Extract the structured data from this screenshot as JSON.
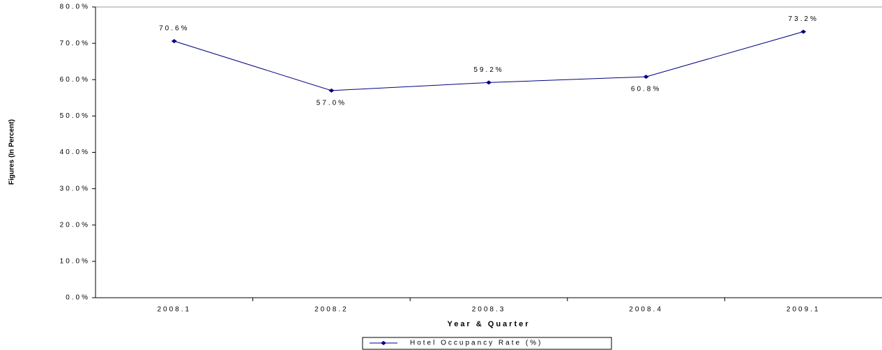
{
  "chart_data": {
    "type": "line",
    "categories": [
      "2008.1",
      "2008.2",
      "2008.3",
      "2008.4",
      "2009.1"
    ],
    "series": [
      {
        "name": "Hotel Occupancy Rate (%)",
        "color": "#000080",
        "values": [
          70.6,
          57.0,
          59.2,
          60.8,
          73.2
        ],
        "value_labels": [
          "70.6%",
          "57.0%",
          "59.2%",
          "60.8%",
          "73.2%"
        ]
      }
    ],
    "ylim": [
      0,
      80
    ],
    "yticks": [
      {
        "value": 0,
        "label": "0.0%"
      },
      {
        "value": 10,
        "label": "10.0%"
      },
      {
        "value": 20,
        "label": "20.0%"
      },
      {
        "value": 30,
        "label": "30.0%"
      },
      {
        "value": 40,
        "label": "40.0%"
      },
      {
        "value": 50,
        "label": "50.0%"
      },
      {
        "value": 60,
        "label": "60.0%"
      },
      {
        "value": 70,
        "label": "70.0%"
      },
      {
        "value": 80,
        "label": "80.0%"
      }
    ],
    "xlabel": "Year & Quarter",
    "ylabel": "Figures (In Percent)",
    "legend": "bottom",
    "grid": false
  }
}
